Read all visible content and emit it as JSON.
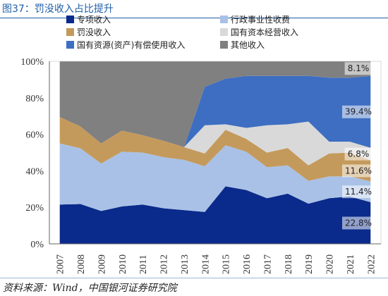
{
  "header": {
    "title": "图37：罚没收入占比提升"
  },
  "footer": {
    "source": "资料来源：Wind，中国银河证券研究院"
  },
  "chart_data": {
    "type": "area",
    "stacked": true,
    "categories": [
      "2007",
      "2008",
      "2009",
      "2010",
      "2011",
      "2012",
      "2013",
      "2014",
      "2015",
      "2016",
      "2017",
      "2018",
      "2019",
      "2020",
      "2021",
      "2022"
    ],
    "ylim": [
      0,
      100
    ],
    "ytick_labels": [
      "0%",
      "20%",
      "40%",
      "60%",
      "80%",
      "100%"
    ],
    "legend_position": "top",
    "series": [
      {
        "name": "专项收入",
        "color": "#0a2a8c",
        "values": [
          21.5,
          21.8,
          18.0,
          20.5,
          21.5,
          19.5,
          18.5,
          17.5,
          31.5,
          29.5,
          25.0,
          27.5,
          22.0,
          25.0,
          26.0,
          22.8
        ]
      },
      {
        "name": "行政事业性收费",
        "color": "#a9c1e6",
        "values": [
          33.5,
          30.5,
          26.0,
          30.0,
          28.5,
          28.0,
          27.5,
          25.0,
          22.5,
          21.0,
          17.0,
          15.5,
          12.5,
          12.0,
          11.0,
          11.4
        ]
      },
      {
        "name": "罚没收入",
        "color": "#c49a5c",
        "values": [
          14.5,
          12.0,
          11.0,
          11.5,
          9.5,
          9.0,
          7.0,
          7.0,
          8.5,
          7.0,
          8.0,
          9.5,
          8.5,
          12.5,
          13.0,
          11.6
        ]
      },
      {
        "name": "国有资本经营收入",
        "color": "#d9d9d9",
        "values": [
          0,
          0,
          0,
          0,
          0,
          0,
          0,
          15.5,
          3.0,
          6.0,
          15.0,
          13.0,
          24.0,
          6.5,
          6.0,
          6.8
        ]
      },
      {
        "name": "国有资源(资产)有偿使用收入",
        "color": "#3d6ec2",
        "values": [
          0,
          0,
          0,
          0,
          0,
          0,
          0,
          21.0,
          25.0,
          28.5,
          27.0,
          26.5,
          25.0,
          35.0,
          35.0,
          39.4
        ]
      },
      {
        "name": "其他收入",
        "color": "#808080",
        "values": [
          30.5,
          35.7,
          45.0,
          38.0,
          40.5,
          43.5,
          47.0,
          14.0,
          9.5,
          8.0,
          8.0,
          8.0,
          8.0,
          9.0,
          9.0,
          8.1
        ]
      }
    ],
    "data_labels": [
      {
        "series": "其他收入",
        "category": "2022",
        "text": "8.1%"
      },
      {
        "series": "国有资源(资产)有偿使用收入",
        "category": "2022",
        "text": "39.4%"
      },
      {
        "series": "国有资本经营收入",
        "category": "2022",
        "text": "6.8%"
      },
      {
        "series": "罚没收入",
        "category": "2022",
        "text": "11.6%"
      },
      {
        "series": "行政事业性收费",
        "category": "2022",
        "text": "11.4%"
      },
      {
        "series": "专项收入",
        "category": "2022",
        "text": "22.8%"
      }
    ]
  }
}
